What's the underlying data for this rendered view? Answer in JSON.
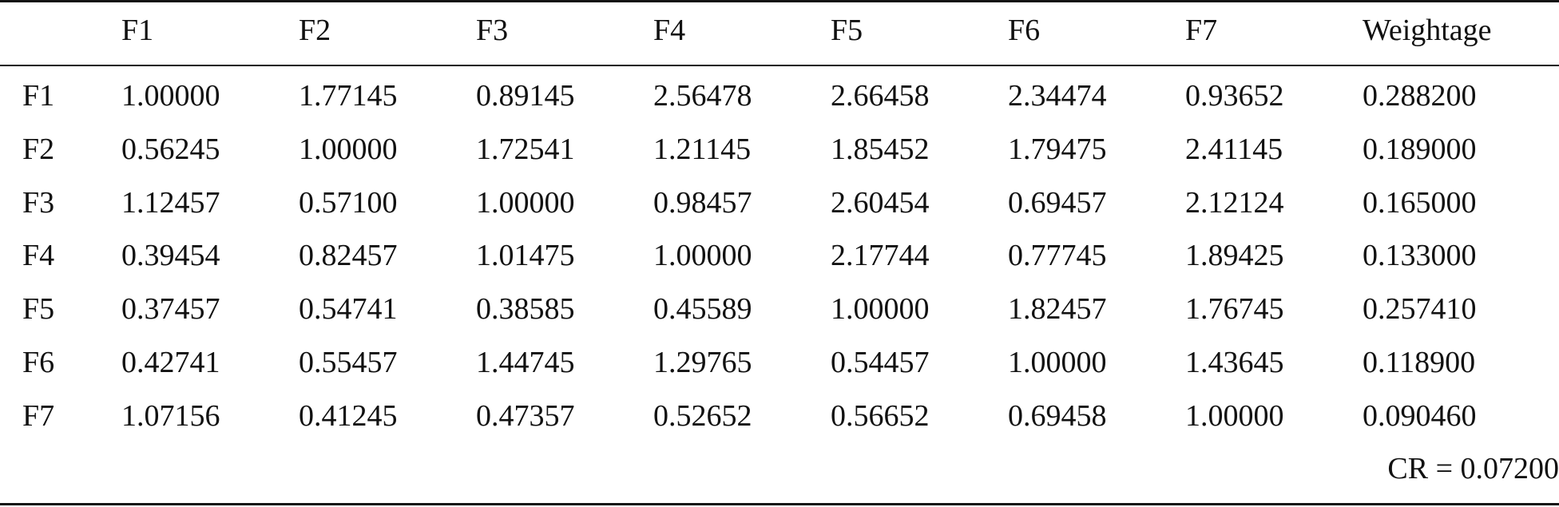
{
  "table": {
    "columns": [
      "F1",
      "F2",
      "F3",
      "F4",
      "F5",
      "F6",
      "F7",
      "Weightage"
    ],
    "rows": [
      {
        "label": "F1",
        "cells": [
          "1.00000",
          "1.77145",
          "0.89145",
          "2.56478",
          "2.66458",
          "2.34474",
          "0.93652",
          "0.288200"
        ]
      },
      {
        "label": "F2",
        "cells": [
          "0.56245",
          "1.00000",
          "1.72541",
          "1.21145",
          "1.85452",
          "1.79475",
          "2.41145",
          "0.189000"
        ]
      },
      {
        "label": "F3",
        "cells": [
          "1.12457",
          "0.57100",
          "1.00000",
          "0.98457",
          "2.60454",
          "0.69457",
          "2.12124",
          "0.165000"
        ]
      },
      {
        "label": "F4",
        "cells": [
          "0.39454",
          "0.82457",
          "1.01475",
          "1.00000",
          "2.17744",
          "0.77745",
          "1.89425",
          "0.133000"
        ]
      },
      {
        "label": "F5",
        "cells": [
          "0.37457",
          "0.54741",
          "0.38585",
          "0.45589",
          "1.00000",
          "1.82457",
          "1.76745",
          "0.257410"
        ]
      },
      {
        "label": "F6",
        "cells": [
          "0.42741",
          "0.55457",
          "1.44745",
          "1.29765",
          "0.54457",
          "1.00000",
          "1.43645",
          "0.118900"
        ]
      },
      {
        "label": "F7",
        "cells": [
          "1.07156",
          "0.41245",
          "0.47357",
          "0.52652",
          "0.56652",
          "0.69458",
          "1.00000",
          "0.090460"
        ]
      }
    ],
    "footer": "CR = 0.07200"
  }
}
